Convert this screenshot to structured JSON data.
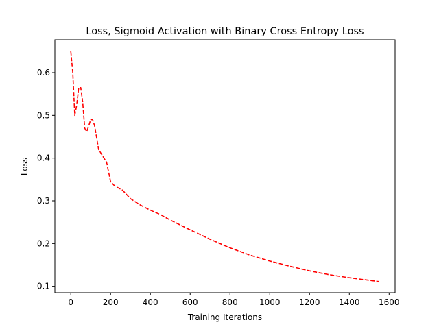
{
  "chart_data": {
    "type": "line",
    "title": "Loss, Sigmoid Activation with Binary Cross Entropy Loss",
    "xlabel": "Training Iterations",
    "ylabel": "Loss",
    "xlim": [
      -80,
      1630
    ],
    "ylim": [
      0.085,
      0.677
    ],
    "xticks": [
      0,
      200,
      400,
      600,
      800,
      1000,
      1200,
      1400,
      1600
    ],
    "yticks": [
      0.1,
      0.2,
      0.3,
      0.4,
      0.5,
      0.6
    ],
    "ytick_labels": [
      "0.1",
      "0.2",
      "0.3",
      "0.4",
      "0.5",
      "0.6"
    ],
    "grid": false,
    "legend": null,
    "series": [
      {
        "color": "#ff0000",
        "linestyle": "dashed",
        "x": [
          0,
          10,
          20,
          30,
          40,
          50,
          60,
          70,
          80,
          90,
          100,
          110,
          120,
          140,
          160,
          180,
          200,
          220,
          260,
          300,
          350,
          400,
          450,
          500,
          600,
          700,
          800,
          900,
          1000,
          1100,
          1200,
          1300,
          1400,
          1500,
          1550
        ],
        "y": [
          0.65,
          0.6,
          0.5,
          0.525,
          0.565,
          0.565,
          0.53,
          0.47,
          0.462,
          0.475,
          0.49,
          0.49,
          0.475,
          0.42,
          0.405,
          0.39,
          0.345,
          0.335,
          0.325,
          0.305,
          0.29,
          0.278,
          0.268,
          0.255,
          0.232,
          0.21,
          0.19,
          0.173,
          0.159,
          0.147,
          0.136,
          0.127,
          0.12,
          0.114,
          0.111
        ]
      }
    ]
  }
}
